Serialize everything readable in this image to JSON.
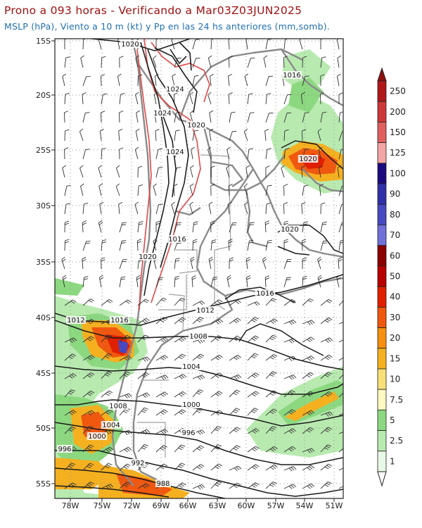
{
  "header": {
    "title": "Prono a 093 horas - Verificando a Mar03Z03JUN2025",
    "subtitle": "MSLP (hPa), Viento a 10 m (kt) y Pp en las 24 hs anteriores (mm,somb)."
  },
  "map": {
    "lat_labels": [
      "15S",
      "20S",
      "25S",
      "30S",
      "35S",
      "40S",
      "45S",
      "50S",
      "55S"
    ],
    "lon_labels": [
      "78W",
      "75W",
      "72W",
      "69W",
      "66W",
      "63W",
      "60W",
      "57W",
      "54W",
      "51W"
    ],
    "isobar_labels": [
      {
        "text": "1020"
      },
      {
        "text": "1024"
      },
      {
        "text": "1024"
      },
      {
        "text": "1020"
      },
      {
        "text": "1024"
      },
      {
        "text": "1016"
      },
      {
        "text": "1020"
      },
      {
        "text": "1020"
      },
      {
        "text": "1020"
      },
      {
        "text": "1016"
      },
      {
        "text": "1016"
      },
      {
        "text": "1012"
      },
      {
        "text": "1012"
      },
      {
        "text": "1016"
      },
      {
        "text": "1008"
      },
      {
        "text": "1004"
      },
      {
        "text": "1008"
      },
      {
        "text": "1000"
      },
      {
        "text": "1004"
      },
      {
        "text": "1000"
      },
      {
        "text": "996"
      },
      {
        "text": "996"
      },
      {
        "text": "992"
      },
      {
        "text": "988"
      }
    ]
  },
  "colorbar": {
    "labels": [
      "250",
      "200",
      "150",
      "125",
      "100",
      "90",
      "80",
      "70",
      "60",
      "50",
      "40",
      "30",
      "20",
      "15",
      "10",
      "7.5",
      "5",
      "2.5",
      "1"
    ],
    "colors": [
      "#b01818",
      "#cc3838",
      "#e06060",
      "#f3a6a6",
      "#1a0a80",
      "#3030a8",
      "#4848c0",
      "#7070d8",
      "#8a0000",
      "#b80000",
      "#e02000",
      "#f05810",
      "#f59010",
      "#f5b020",
      "#f8e078",
      "#fff8c0",
      "#8cd880",
      "#b8eab0",
      "#e8f8e6"
    ],
    "top_arrow_color": "#901010",
    "bottom_arrow_color": "#ffffff"
  }
}
